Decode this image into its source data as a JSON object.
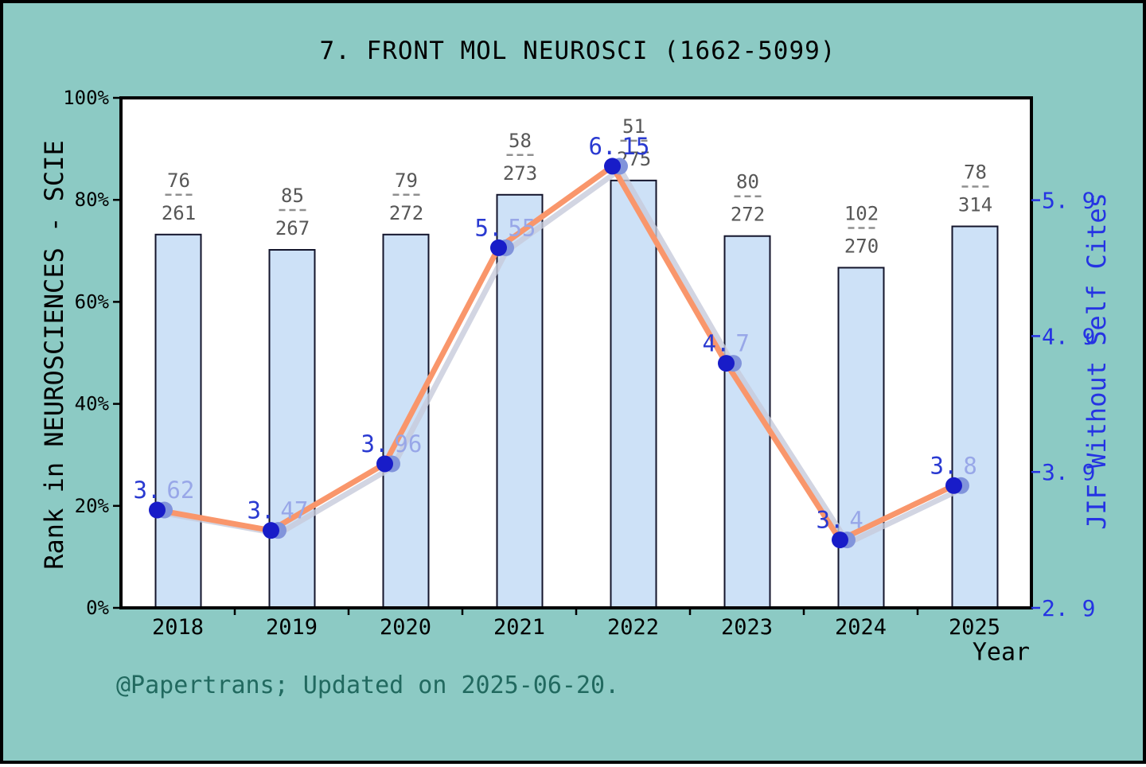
{
  "title": "7. FRONT MOL NEUROSCI (1662-5099)",
  "footer": "@Papertrans; Updated on 2025-06-20.",
  "colors": {
    "background": "#8CCAC4",
    "plot_background": "#FFFFFF",
    "frame": "#000000",
    "bar_fill": "#CDE1F7",
    "bar_border": "#13142B",
    "line_orange": "#F9966B",
    "line_gray": "#C7CBDB",
    "marker_navy": "#181CC8",
    "marker_periwinkle": "#8194DB",
    "label_navy": "#2A3AD1",
    "label_periwinkle": "#98A7E8",
    "right_axis_blue": "#2533E3",
    "fraction_text": "#575757",
    "fraction_dash": "#8F8F8F",
    "axis_text": "#000000",
    "footer_teal": "#21695F"
  },
  "chart_data": {
    "type": "bar+line",
    "title": "7. FRONT MOL NEUROSCI (1662-5099)",
    "categories": [
      "2018",
      "2019",
      "2020",
      "2021",
      "2022",
      "2023",
      "2024",
      "2025"
    ],
    "x_axis_label": "Year",
    "grid": false,
    "left_axis": {
      "label": "Rank in NEUROSCIENCES - SCIE",
      "ticks": [
        0,
        20,
        40,
        60,
        80,
        100
      ],
      "tick_labels": [
        "0%",
        "20%",
        "40%",
        "60%",
        "80%",
        "100%"
      ],
      "range": [
        0,
        100
      ]
    },
    "right_axis": {
      "label": "JIF Without Self Cites",
      "ticks": [
        2.9,
        3.9,
        4.9,
        5.9
      ],
      "tick_labels": [
        "2. 9",
        "3. 9",
        "4. 9",
        "5. 9"
      ],
      "range": [
        2.9,
        6.653
      ]
    },
    "series": [
      {
        "name": "Rank in NEUROSCIENCES - SCIE",
        "type": "bar",
        "values_percent": [
          73.2,
          70.2,
          73.2,
          81.0,
          83.8,
          72.9,
          66.7,
          74.8
        ],
        "rank_labels": [
          {
            "rank": "76",
            "total": "261"
          },
          {
            "rank": "85",
            "total": "267"
          },
          {
            "rank": "79",
            "total": "272"
          },
          {
            "rank": "58",
            "total": "273"
          },
          {
            "rank": "51",
            "total": "275"
          },
          {
            "rank": "80",
            "total": "272"
          },
          {
            "rank": "102",
            "total": "270"
          },
          {
            "rank": "78",
            "total": "314"
          }
        ]
      },
      {
        "name": "JIF Without Self Cites",
        "type": "line",
        "values": [
          3.62,
          3.47,
          3.96,
          5.55,
          6.15,
          4.7,
          3.4,
          3.8
        ],
        "point_labels": [
          [
            [
              "3.",
              "dark"
            ],
            [
              "62",
              "light"
            ]
          ],
          [
            [
              "3.",
              "dark"
            ],
            [
              "47",
              "light"
            ]
          ],
          [
            [
              "3.",
              "dark"
            ],
            [
              "96",
              "light"
            ]
          ],
          [
            [
              "5.",
              "dark"
            ],
            [
              "55",
              "light"
            ]
          ],
          [
            [
              "6.",
              "dark"
            ],
            [
              "15",
              "dark"
            ]
          ],
          [
            [
              "4.",
              "dark"
            ],
            [
              "7",
              "light"
            ]
          ],
          [
            [
              "3.",
              "dark"
            ],
            [
              "4",
              "light"
            ]
          ],
          [
            [
              "3.",
              "dark"
            ],
            [
              "8",
              "light"
            ]
          ]
        ]
      }
    ]
  }
}
